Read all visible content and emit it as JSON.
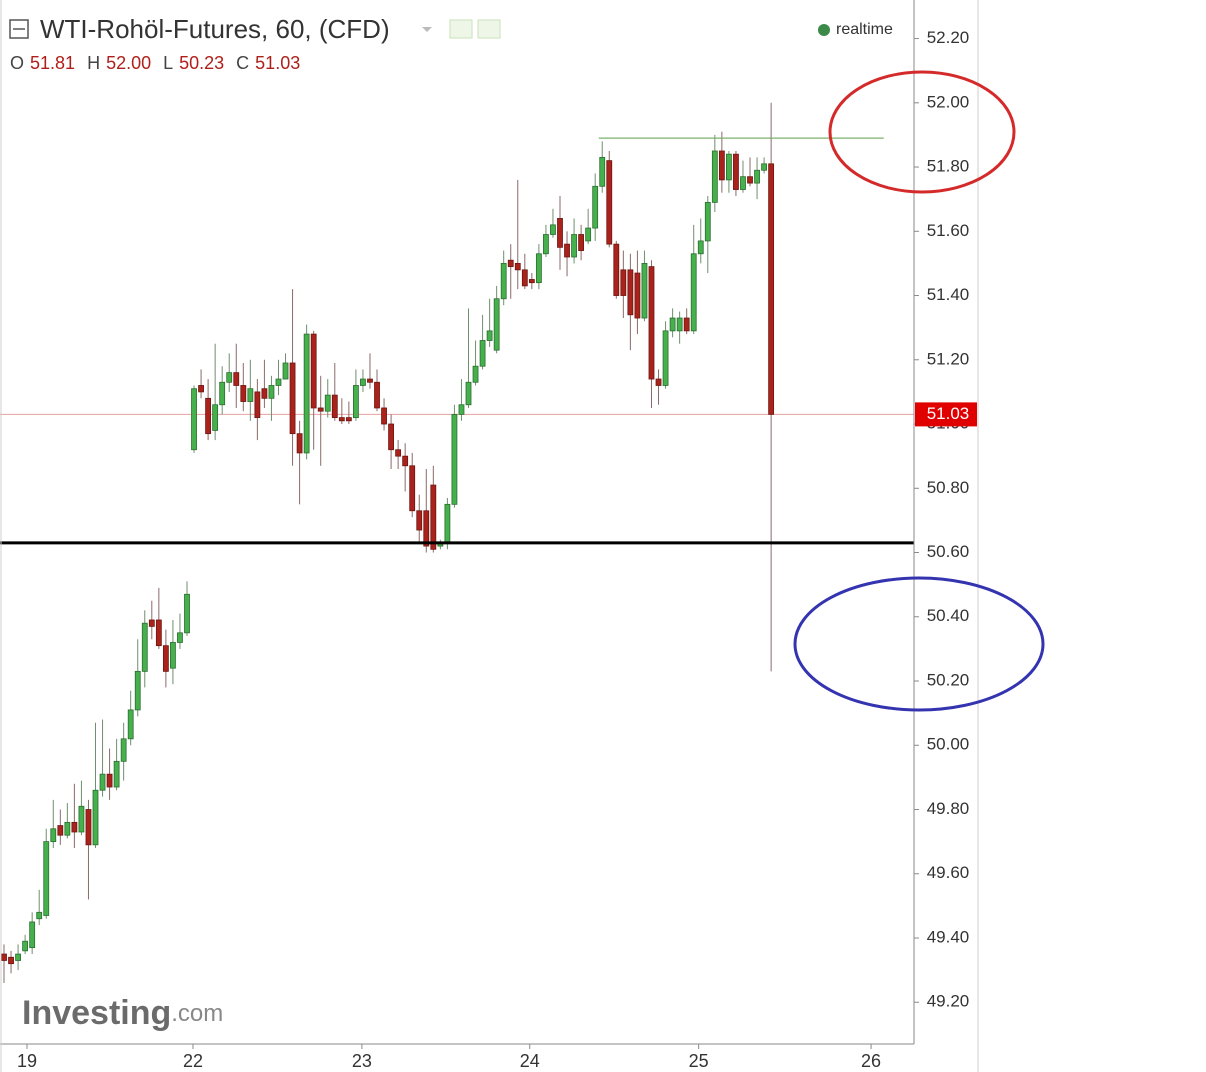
{
  "chart_data": {
    "type": "candlestick",
    "title": "WTI-Rohöl-Futures, 60, (CFD)",
    "status": "realtime",
    "watermark": {
      "brand": "Investing",
      "suffix": ".com"
    },
    "ohlc": [
      {
        "label": "O",
        "value": "51.81"
      },
      {
        "label": "H",
        "value": "52.00"
      },
      {
        "label": "L",
        "value": "50.23"
      },
      {
        "label": "C",
        "value": "51.03"
      }
    ],
    "up_color": "#46b04c",
    "down_color": "#a9231c",
    "series": [
      {
        "open": [
          49.35,
          49.34,
          49.33,
          49.36,
          49.37,
          49.46,
          49.47,
          49.7,
          49.75,
          49.72,
          49.76,
          49.73,
          49.8,
          49.69,
          49.86,
          49.91,
          49.87,
          49.95,
          50.02,
          50.11,
          50.23,
          50.39,
          50.39,
          50.31,
          50.24,
          50.32,
          50.35,
          50.92,
          51.12,
          51.08,
          50.98,
          51.06,
          51.13,
          51.16,
          51.12,
          51.07,
          51.1,
          51.11,
          51.08,
          51.12,
          51.14,
          51.19,
          50.97,
          50.91,
          51.28,
          51.05,
          51.04,
          51.09,
          51.02,
          51.02,
          51.02,
          51.12,
          51.14,
          51.13,
          51.05,
          51.0,
          50.92,
          50.9,
          50.87,
          50.73,
          50.73,
          50.81,
          50.62,
          50.63,
          50.75,
          51.03,
          51.06,
          51.13,
          51.18,
          51.26,
          51.23,
          51.39,
          51.51,
          51.5,
          51.48,
          51.45,
          51.44,
          51.53,
          51.59,
          51.64,
          51.56,
          51.52,
          51.59,
          51.57,
          51.61,
          51.74,
          51.82,
          51.56,
          51.48,
          51.48,
          51.47,
          51.33,
          51.49,
          51.14,
          51.12,
          51.29,
          51.29,
          51.33,
          51.29,
          51.53,
          51.57,
          51.69,
          51.85,
          51.76,
          51.84,
          51.73,
          51.77,
          51.75,
          51.79,
          51.81
        ],
        "high": [
          49.38,
          49.36,
          49.38,
          49.41,
          49.48,
          49.55,
          49.74,
          49.83,
          49.8,
          49.82,
          49.88,
          49.89,
          49.83,
          50.07,
          50.08,
          49.99,
          50.02,
          50.07,
          50.17,
          50.33,
          50.42,
          50.45,
          50.49,
          50.36,
          50.39,
          50.41,
          50.51,
          51.12,
          51.17,
          51.14,
          51.25,
          51.18,
          51.22,
          51.25,
          51.19,
          51.2,
          51.14,
          51.2,
          51.15,
          51.2,
          51.22,
          51.42,
          51.01,
          51.31,
          51.29,
          51.15,
          51.14,
          51.19,
          51.08,
          51.07,
          51.17,
          51.17,
          51.22,
          51.17,
          51.08,
          51.03,
          50.95,
          50.94,
          50.91,
          50.78,
          50.86,
          50.87,
          50.64,
          50.77,
          51.06,
          51.14,
          51.36,
          51.26,
          51.34,
          51.39,
          51.43,
          51.54,
          51.56,
          51.76,
          51.53,
          51.47,
          51.56,
          51.62,
          51.67,
          51.71,
          51.6,
          51.64,
          51.62,
          51.67,
          51.78,
          51.88,
          51.85,
          51.57,
          51.54,
          51.53,
          51.54,
          51.54,
          51.51,
          51.17,
          51.32,
          51.36,
          51.35,
          51.36,
          51.62,
          51.64,
          51.71,
          51.9,
          51.91,
          51.85,
          51.85,
          51.82,
          51.83,
          51.83,
          51.83,
          52.0
        ],
        "low": [
          49.26,
          49.29,
          49.3,
          49.35,
          49.35,
          49.44,
          49.46,
          49.68,
          49.69,
          49.71,
          49.68,
          49.72,
          49.52,
          49.68,
          49.84,
          49.83,
          49.86,
          49.89,
          50.0,
          50.09,
          50.18,
          50.33,
          50.3,
          50.18,
          50.19,
          50.3,
          50.34,
          50.91,
          51.08,
          50.95,
          50.95,
          51.03,
          51.1,
          51.05,
          51.04,
          51.01,
          50.95,
          51.05,
          51.01,
          51.09,
          51.16,
          50.87,
          50.75,
          50.89,
          50.92,
          50.87,
          51.02,
          51.01,
          51.0,
          51.0,
          51.01,
          51.1,
          51.11,
          51.04,
          50.98,
          50.86,
          50.86,
          50.79,
          50.71,
          50.63,
          50.6,
          50.6,
          50.61,
          50.61,
          50.74,
          51.01,
          51.05,
          51.12,
          51.17,
          51.24,
          51.22,
          51.37,
          51.39,
          51.42,
          51.42,
          51.42,
          51.42,
          51.52,
          51.58,
          51.48,
          51.46,
          51.5,
          51.51,
          51.56,
          51.57,
          51.72,
          51.55,
          51.39,
          51.33,
          51.23,
          51.28,
          51.32,
          51.05,
          51.06,
          51.11,
          51.27,
          51.25,
          51.28,
          51.28,
          51.5,
          51.47,
          51.66,
          51.72,
          51.72,
          51.71,
          51.72,
          51.74,
          51.7,
          51.78,
          50.23
        ],
        "close": [
          49.33,
          49.32,
          49.35,
          49.39,
          49.45,
          49.48,
          49.7,
          49.74,
          49.72,
          49.76,
          49.73,
          49.81,
          49.69,
          49.86,
          49.91,
          49.87,
          49.95,
          50.02,
          50.11,
          50.23,
          50.38,
          50.37,
          50.31,
          50.23,
          50.32,
          50.35,
          50.47,
          51.11,
          51.1,
          50.97,
          51.06,
          51.13,
          51.16,
          51.12,
          51.07,
          51.11,
          51.02,
          51.08,
          51.12,
          51.14,
          51.19,
          50.97,
          50.91,
          51.28,
          51.05,
          51.04,
          51.09,
          51.02,
          51.01,
          51.01,
          51.12,
          51.14,
          51.13,
          51.05,
          51.0,
          50.92,
          50.9,
          50.87,
          50.73,
          50.67,
          50.62,
          50.61,
          50.63,
          50.75,
          51.03,
          51.06,
          51.13,
          51.18,
          51.26,
          51.29,
          51.39,
          51.5,
          51.49,
          51.48,
          51.43,
          51.44,
          51.53,
          51.59,
          51.62,
          51.55,
          51.52,
          51.59,
          51.54,
          51.61,
          51.74,
          51.83,
          51.56,
          51.4,
          51.4,
          51.34,
          51.33,
          51.5,
          51.14,
          51.12,
          51.29,
          51.33,
          51.33,
          51.29,
          51.53,
          51.57,
          51.69,
          51.85,
          51.76,
          51.84,
          51.73,
          51.77,
          51.75,
          51.79,
          51.81,
          51.03
        ]
      }
    ],
    "last_price": {
      "value": 51.03,
      "label": "51.03",
      "color": "#e00000"
    },
    "hlines": [
      {
        "value": 50.63,
        "color": "#000000"
      },
      {
        "value": 51.89,
        "color": "#7bb26a",
        "xrange": [
          84.5,
          125
        ]
      }
    ],
    "xlim": [
      -0.57,
      129.3
    ],
    "xticks": [
      {
        "value": 3.27,
        "label": "19"
      },
      {
        "value": 26.85,
        "label": "22"
      },
      {
        "value": 50.85,
        "label": "23"
      },
      {
        "value": 74.7,
        "label": "24"
      },
      {
        "value": 98.7,
        "label": "25"
      },
      {
        "value": 123.2,
        "label": "26"
      }
    ],
    "ylim": [
      49.07,
      52.32
    ],
    "yticks": [
      {
        "value": 49.2,
        "label": "49.20"
      },
      {
        "value": 49.4,
        "label": "49.40"
      },
      {
        "value": 49.6,
        "label": "49.60"
      },
      {
        "value": 49.8,
        "label": "49.80"
      },
      {
        "value": 50.0,
        "label": "50.00"
      },
      {
        "value": 50.2,
        "label": "50.20"
      },
      {
        "value": 50.4,
        "label": "50.40"
      },
      {
        "value": 50.6,
        "label": "50.60"
      },
      {
        "value": 50.8,
        "label": "50.80"
      },
      {
        "value": 51.0,
        "label": "51.00"
      },
      {
        "value": 51.2,
        "label": "51.20"
      },
      {
        "value": 51.4,
        "label": "51.40"
      },
      {
        "value": 51.6,
        "label": "51.60"
      },
      {
        "value": 51.8,
        "label": "51.80"
      },
      {
        "value": 52.0,
        "label": "52.00"
      },
      {
        "value": 52.2,
        "label": "52.20"
      }
    ]
  }
}
